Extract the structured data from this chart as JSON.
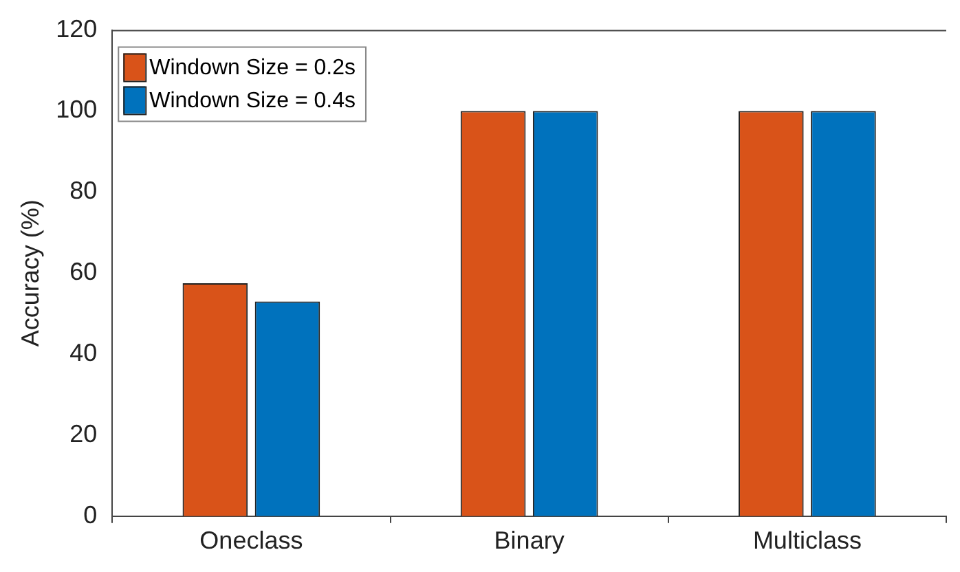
{
  "chart_data": {
    "type": "bar",
    "ylabel": "Accuracy (%)",
    "categories": [
      "Oneclass",
      "Binary",
      "Multiclass"
    ],
    "series": [
      {
        "name": "Windown Size = 0.2s",
        "color": "#d95319",
        "values": [
          57.5,
          100,
          100
        ]
      },
      {
        "name": "Windown Size = 0.4s",
        "color": "#0072bd",
        "values": [
          53,
          100,
          100
        ]
      }
    ],
    "ylim": [
      0,
      120
    ],
    "yticks": [
      0,
      20,
      40,
      60,
      80,
      100,
      120
    ],
    "grid": false,
    "legend": "top left"
  }
}
